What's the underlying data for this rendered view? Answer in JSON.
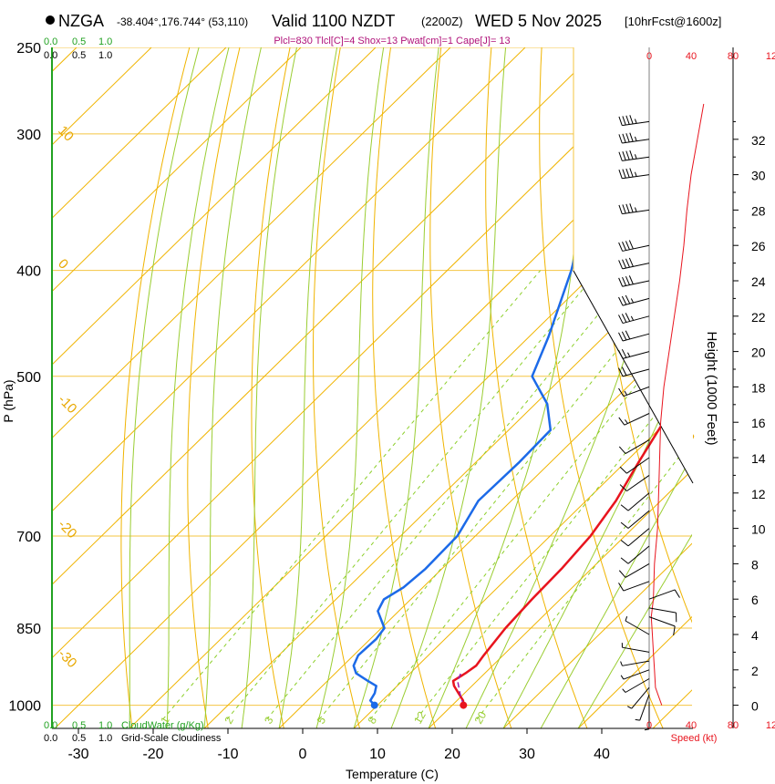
{
  "header": {
    "station": "NZGA",
    "coords": "-38.404°,176.744° (53,110)",
    "valid": "Valid 1100 NZDT",
    "utc": "(2200Z)",
    "date": "WED 5 Nov 2025",
    "fcst": "[10hrFcst@1600z]",
    "indices": "Plcl=830 Tlcl[C]=4 Shox=13 Pwat[cm]=1 Cape[J]= 13"
  },
  "chart_data": {
    "type": "line",
    "title": "Skew-T log-P sounding",
    "xlabel": "Temperature (C)",
    "ylabel": "P (hPa)",
    "right_axis_label": "Height (1000 Feet)",
    "x_ticks": [
      "-30",
      "-20",
      "-10",
      "0",
      "10",
      "20",
      "30",
      "40"
    ],
    "x_tick_values": [
      -30,
      -20,
      -10,
      0,
      10,
      20,
      30,
      40
    ],
    "p_levels": [
      250,
      300,
      400,
      500,
      700,
      850,
      1000
    ],
    "p_labels": [
      "250",
      "300",
      "400",
      "500",
      "700",
      "850",
      "1000"
    ],
    "height_ticks": [
      "0",
      "2",
      "4",
      "6",
      "8",
      "10",
      "12",
      "14",
      "16",
      "18",
      "20",
      "22",
      "24",
      "26",
      "28",
      "30",
      "32"
    ],
    "height_values_kft": [
      0,
      2,
      4,
      6,
      8,
      10,
      12,
      14,
      16,
      18,
      20,
      22,
      24,
      26,
      28,
      30,
      32
    ],
    "isotherm_labels": [
      "-30",
      "-20",
      "-10",
      "0",
      "10",
      "20",
      "30"
    ],
    "isotherm_label_values": [
      -30,
      -20,
      -10,
      0,
      10,
      20,
      30
    ],
    "mixing_ratio_labels": [
      "1",
      "2",
      "3",
      "5",
      "8",
      "12",
      "20"
    ],
    "mixing_ratio_values": [
      1,
      2,
      3,
      5,
      8,
      12,
      20
    ],
    "cloud_water_scale": [
      "0.0",
      "0.5",
      "1.0"
    ],
    "cloud_water_label": "CloudWater (g/Kg)",
    "cloudiness_scale": [
      "0.0",
      "0.5",
      "1.0"
    ],
    "cloudiness_label": "Grid-Scale Cloudiness",
    "speed_scale": [
      "0",
      "40",
      "80",
      "12"
    ],
    "speed_bottom_scale": [
      "0",
      "40",
      "80",
      "12"
    ],
    "speed_label": "Speed (kt)",
    "temperature": {
      "name": "Temperature",
      "color": "#e8141e",
      "points": [
        [
          1000,
          21.5
        ],
        [
          990,
          20.8
        ],
        [
          975,
          19.2
        ],
        [
          960,
          17.6
        ],
        [
          950,
          16.8
        ],
        [
          935,
          17.4
        ],
        [
          920,
          17.8
        ],
        [
          900,
          17.4
        ],
        [
          850,
          16.6
        ],
        [
          800,
          16.2
        ],
        [
          750,
          16.0
        ],
        [
          700,
          15.4
        ],
        [
          650,
          14.0
        ],
        [
          600,
          11.8
        ],
        [
          550,
          9.6
        ],
        [
          500,
          7.4
        ],
        [
          450,
          4.2
        ],
        [
          400,
          0.6
        ],
        [
          350,
          -3.4
        ],
        [
          300,
          -8.2
        ],
        [
          265,
          -12.2
        ]
      ]
    },
    "dewpoint": {
      "name": "Dewpoint",
      "color": "#1c6ae8",
      "points": [
        [
          1000,
          9.6
        ],
        [
          990,
          8.4
        ],
        [
          975,
          8.0
        ],
        [
          960,
          7.2
        ],
        [
          950,
          5.4
        ],
        [
          935,
          2.8
        ],
        [
          920,
          1.4
        ],
        [
          900,
          0.6
        ],
        [
          870,
          0.8
        ],
        [
          850,
          0.4
        ],
        [
          820,
          -2.8
        ],
        [
          800,
          -3.6
        ],
        [
          780,
          -2.6
        ],
        [
          750,
          -2.2
        ],
        [
          700,
          -2.4
        ],
        [
          650,
          -4.4
        ],
        [
          600,
          -4.2
        ],
        [
          560,
          -4.4
        ],
        [
          530,
          -8.4
        ],
        [
          500,
          -14.2
        ],
        [
          460,
          -17.4
        ],
        [
          400,
          -23.4
        ],
        [
          370,
          -27.2
        ],
        [
          350,
          -27.8
        ],
        [
          320,
          -28.0
        ],
        [
          300,
          -27.6
        ],
        [
          270,
          -27.6
        ],
        [
          255,
          -28.4
        ]
      ]
    },
    "parcel": {
      "name": "Parcel",
      "color": "#9b1ea8",
      "points": [
        [
          1000,
          21.5
        ],
        [
          975,
          19.4
        ],
        [
          950,
          17.4
        ],
        [
          935,
          16.8
        ]
      ]
    },
    "surface_markers": [
      {
        "name": "surface-temperature",
        "pressure": 1000,
        "temp": 21.5,
        "color": "#e8141e"
      },
      {
        "name": "surface-dewpoint",
        "pressure": 1000,
        "temp": 9.6,
        "color": "#1c6ae8"
      }
    ],
    "wind_speed_profile_kt": [
      [
        0,
        12
      ],
      [
        1,
        6
      ],
      [
        2,
        5
      ],
      [
        3,
        4
      ],
      [
        4,
        3
      ],
      [
        5,
        2
      ],
      [
        6,
        4
      ],
      [
        8,
        5
      ],
      [
        10,
        8
      ],
      [
        12,
        9
      ],
      [
        14,
        10
      ],
      [
        16,
        11
      ],
      [
        18,
        14
      ],
      [
        20,
        19
      ],
      [
        22,
        24
      ],
      [
        24,
        29
      ],
      [
        26,
        33
      ],
      [
        28,
        36
      ],
      [
        30,
        40
      ],
      [
        32,
        46
      ],
      [
        34,
        52
      ]
    ],
    "wind_barbs": [
      {
        "h_kft": 0.2,
        "dir": 180,
        "spd": 5
      },
      {
        "h_kft": 0.6,
        "dir": 200,
        "spd": 5
      },
      {
        "h_kft": 1.0,
        "dir": 220,
        "spd": 5
      },
      {
        "h_kft": 1.5,
        "dir": 240,
        "spd": 5
      },
      {
        "h_kft": 2.0,
        "dir": 250,
        "spd": 5
      },
      {
        "h_kft": 2.5,
        "dir": 260,
        "spd": 5
      },
      {
        "h_kft": 3.0,
        "dir": 280,
        "spd": 5
      },
      {
        "h_kft": 4.0,
        "dir": 300,
        "spd": 5
      },
      {
        "h_kft": 5.0,
        "dir": 110,
        "spd": 10
      },
      {
        "h_kft": 5.5,
        "dir": 100,
        "spd": 10
      },
      {
        "h_kft": 6.0,
        "dir": 70,
        "spd": 10
      },
      {
        "h_kft": 7.0,
        "dir": 250,
        "spd": 10
      },
      {
        "h_kft": 8.0,
        "dir": 240,
        "spd": 10
      },
      {
        "h_kft": 9.0,
        "dir": 230,
        "spd": 10
      },
      {
        "h_kft": 10.0,
        "dir": 230,
        "spd": 10
      },
      {
        "h_kft": 11.0,
        "dir": 230,
        "spd": 10
      },
      {
        "h_kft": 12.0,
        "dir": 230,
        "spd": 10
      },
      {
        "h_kft": 13.0,
        "dir": 235,
        "spd": 10
      },
      {
        "h_kft": 14.0,
        "dir": 235,
        "spd": 10
      },
      {
        "h_kft": 15.0,
        "dir": 240,
        "spd": 10
      },
      {
        "h_kft": 16.5,
        "dir": 245,
        "spd": 15
      },
      {
        "h_kft": 18.0,
        "dir": 250,
        "spd": 15
      },
      {
        "h_kft": 19.0,
        "dir": 255,
        "spd": 20
      },
      {
        "h_kft": 20.0,
        "dir": 255,
        "spd": 25
      },
      {
        "h_kft": 21.0,
        "dir": 255,
        "spd": 30
      },
      {
        "h_kft": 22.0,
        "dir": 255,
        "spd": 35
      },
      {
        "h_kft": 23.0,
        "dir": 255,
        "spd": 35
      },
      {
        "h_kft": 24.0,
        "dir": 258,
        "spd": 40
      },
      {
        "h_kft": 25.0,
        "dir": 258,
        "spd": 40
      },
      {
        "h_kft": 26.0,
        "dir": 258,
        "spd": 40
      },
      {
        "h_kft": 28.0,
        "dir": 262,
        "spd": 45
      },
      {
        "h_kft": 30.0,
        "dir": 262,
        "spd": 45
      },
      {
        "h_kft": 31.0,
        "dir": 262,
        "spd": 45
      },
      {
        "h_kft": 32.0,
        "dir": 262,
        "spd": 45
      },
      {
        "h_kft": 33.0,
        "dir": 262,
        "spd": 45
      }
    ]
  }
}
